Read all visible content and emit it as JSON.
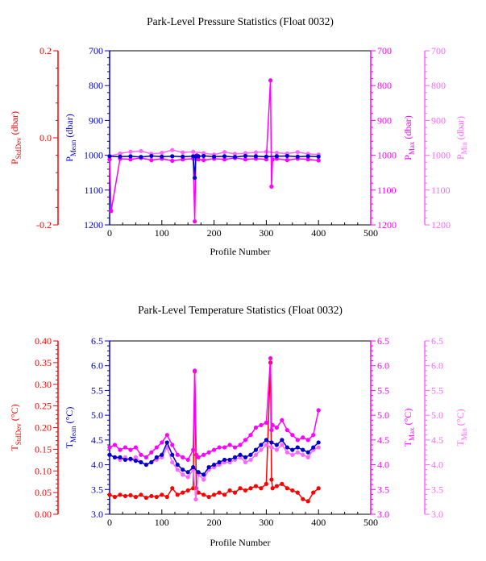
{
  "colors": {
    "stddev": "#ff0000",
    "mean": "#0000cc",
    "max": "#ff00ff",
    "min": "#ff66ff",
    "frame": "#000000"
  },
  "chart_data": [
    {
      "type": "scatter",
      "title": "Park-Level Pressure Statistics (Float 0032)",
      "xlabel": "Profile Number",
      "xlim": [
        0,
        500
      ],
      "xticks": [
        "0",
        "100",
        "200",
        "300",
        "400",
        "500"
      ],
      "grid": false,
      "axes": {
        "stddev": {
          "label_main": "P",
          "label_sub": "StdDev",
          "unit": " (dbar)",
          "range": [
            -0.2,
            0.2
          ],
          "reversed": false,
          "ticks": [
            "-0.2",
            "0.0",
            "0.2"
          ],
          "side": "left-outer",
          "color_key": "stddev"
        },
        "mean": {
          "label_main": "P",
          "label_sub": "Mean",
          "unit": " (dbar)",
          "range": [
            1200,
            700
          ],
          "reversed": true,
          "ticks": [
            "700",
            "800",
            "900",
            "1000",
            "1100",
            "1200"
          ],
          "side": "left",
          "color_key": "mean"
        },
        "max": {
          "label_main": "P",
          "label_sub": "Max",
          "unit": " (dbar)",
          "range": [
            1200,
            700
          ],
          "reversed": true,
          "ticks": [
            "700",
            "800",
            "900",
            "1000",
            "1100",
            "1200"
          ],
          "side": "right",
          "color_key": "max"
        },
        "min": {
          "label_main": "P",
          "label_sub": "Min",
          "unit": " (dbar)",
          "range": [
            1200,
            700
          ],
          "reversed": true,
          "ticks": [
            "700",
            "800",
            "900",
            "1000",
            "1100",
            "1200"
          ],
          "side": "right-outer",
          "color_key": "min"
        }
      },
      "series": [
        {
          "key": "min",
          "axis": "min",
          "x": [
            0,
            20,
            40,
            60,
            80,
            100,
            120,
            140,
            160,
            180,
            200,
            220,
            240,
            260,
            280,
            300,
            320,
            340,
            360,
            380,
            400
          ],
          "y": [
            1002,
            995,
            990,
            988,
            996,
            993,
            985,
            992,
            990,
            994,
            998,
            991,
            996,
            994,
            992,
            990,
            993,
            995,
            991,
            996,
            998
          ]
        },
        {
          "key": "max",
          "axis": "max",
          "x": [
            0,
            3,
            20,
            40,
            60,
            80,
            100,
            120,
            140,
            160,
            163,
            165,
            167,
            170,
            180,
            200,
            220,
            240,
            260,
            280,
            300,
            308,
            310,
            312,
            320,
            340,
            360,
            380,
            400
          ],
          "y": [
            1012,
            1160,
            1010,
            1012,
            1008,
            1014,
            1010,
            1016,
            1012,
            1010,
            1190,
            1010,
            1000,
            1012,
            1014,
            1010,
            1012,
            1008,
            1012,
            1010,
            1012,
            785,
            1090,
            1012,
            1010,
            1014,
            1010,
            1012,
            1015
          ]
        },
        {
          "key": "mean",
          "axis": "mean",
          "x": [
            0,
            20,
            40,
            60,
            80,
            100,
            120,
            140,
            160,
            163,
            165,
            170,
            180,
            200,
            220,
            240,
            260,
            280,
            300,
            320,
            340,
            360,
            380,
            400
          ],
          "y": [
            1003,
            1004,
            1003,
            1005,
            1002,
            1004,
            1003,
            1004,
            1003,
            1065,
            1003,
            1003,
            1002,
            1004,
            1003,
            1005,
            1002,
            1003,
            1004,
            1003,
            1002,
            1004,
            1003,
            1004
          ]
        }
      ]
    },
    {
      "type": "scatter",
      "title": "Park-Level Temperature Statistics (Float 0032)",
      "xlabel": "Profile Number",
      "xlim": [
        0,
        500
      ],
      "xticks": [
        "0",
        "100",
        "200",
        "300",
        "400",
        "500"
      ],
      "grid": false,
      "axes": {
        "stddev": {
          "label_main": "T",
          "label_sub": "StdDev",
          "unit": " (°C)",
          "range": [
            0.0,
            0.4
          ],
          "reversed": false,
          "ticks": [
            "0.00",
            "0.05",
            "0.10",
            "0.15",
            "0.20",
            "0.25",
            "0.30",
            "0.35",
            "0.40"
          ],
          "side": "left-outer",
          "color_key": "stddev"
        },
        "mean": {
          "label_main": "T",
          "label_sub": "Mean",
          "unit": " (°C)",
          "range": [
            3.0,
            6.5
          ],
          "reversed": false,
          "ticks": [
            "3.0",
            "3.5",
            "4.0",
            "4.5",
            "5.0",
            "5.5",
            "6.0",
            "6.5"
          ],
          "side": "left",
          "color_key": "mean"
        },
        "max": {
          "label_main": "T",
          "label_sub": "Max",
          "unit": " (°C)",
          "range": [
            3.0,
            6.5
          ],
          "reversed": false,
          "ticks": [
            "3.0",
            "3.5",
            "4.0",
            "4.5",
            "5.0",
            "5.5",
            "6.0",
            "6.5"
          ],
          "side": "right",
          "color_key": "max"
        },
        "min": {
          "label_main": "T",
          "label_sub": "Min",
          "unit": " (°C)",
          "range": [
            3.0,
            6.5
          ],
          "reversed": false,
          "ticks": [
            "3.0",
            "3.5",
            "4.0",
            "4.5",
            "5.0",
            "5.5",
            "6.0",
            "6.5"
          ],
          "side": "right-outer",
          "color_key": "min"
        }
      },
      "series": [
        {
          "key": "stddev",
          "axis": "stddev",
          "x": [
            0,
            10,
            20,
            30,
            40,
            50,
            60,
            70,
            80,
            90,
            100,
            110,
            120,
            130,
            140,
            150,
            160,
            163,
            166,
            170,
            180,
            190,
            200,
            210,
            220,
            230,
            240,
            250,
            260,
            270,
            280,
            290,
            300,
            308,
            310,
            312,
            320,
            330,
            340,
            350,
            360,
            370,
            380,
            390,
            400
          ],
          "y": [
            0.045,
            0.04,
            0.045,
            0.042,
            0.044,
            0.04,
            0.045,
            0.038,
            0.042,
            0.04,
            0.045,
            0.04,
            0.06,
            0.045,
            0.05,
            0.055,
            0.06,
            0.33,
            0.06,
            0.05,
            0.045,
            0.04,
            0.045,
            0.05,
            0.045,
            0.055,
            0.05,
            0.06,
            0.055,
            0.06,
            0.065,
            0.06,
            0.07,
            0.35,
            0.08,
            0.06,
            0.065,
            0.07,
            0.06,
            0.055,
            0.05,
            0.035,
            0.03,
            0.05,
            0.06
          ]
        },
        {
          "key": "min",
          "axis": "min",
          "x": [
            0,
            10,
            20,
            30,
            40,
            50,
            60,
            70,
            80,
            90,
            100,
            110,
            120,
            130,
            140,
            150,
            160,
            165,
            170,
            180,
            190,
            200,
            210,
            220,
            230,
            240,
            250,
            260,
            270,
            280,
            290,
            300,
            310,
            320,
            330,
            340,
            350,
            360,
            370,
            380,
            390,
            400
          ],
          "y": [
            4.2,
            4.15,
            4.1,
            4.15,
            4.1,
            4.15,
            4.05,
            4.0,
            4.05,
            4.1,
            4.15,
            4.35,
            4.05,
            3.9,
            3.8,
            3.75,
            3.9,
            3.3,
            3.8,
            3.7,
            3.9,
            3.95,
            4.0,
            4.05,
            4.05,
            4.1,
            4.15,
            4.05,
            4.1,
            4.2,
            4.3,
            4.4,
            4.35,
            4.3,
            4.4,
            4.25,
            4.2,
            4.25,
            4.2,
            4.15,
            4.3,
            4.35
          ]
        },
        {
          "key": "max",
          "axis": "max",
          "x": [
            0,
            10,
            20,
            30,
            40,
            50,
            60,
            70,
            80,
            90,
            100,
            110,
            120,
            130,
            140,
            150,
            160,
            163,
            166,
            170,
            180,
            190,
            200,
            210,
            220,
            230,
            240,
            250,
            260,
            270,
            280,
            290,
            300,
            308,
            310,
            312,
            320,
            330,
            340,
            350,
            360,
            370,
            380,
            390,
            400
          ],
          "y": [
            4.35,
            4.4,
            4.3,
            4.35,
            4.3,
            4.35,
            4.2,
            4.15,
            4.25,
            4.35,
            4.45,
            4.6,
            4.4,
            4.2,
            4.15,
            4.1,
            4.3,
            5.9,
            4.2,
            4.15,
            4.2,
            4.25,
            4.3,
            4.35,
            4.35,
            4.4,
            4.35,
            4.4,
            4.5,
            4.6,
            4.75,
            4.8,
            4.85,
            6.15,
            4.7,
            4.8,
            4.75,
            4.9,
            4.7,
            4.6,
            4.5,
            4.55,
            4.5,
            4.6,
            5.1
          ]
        },
        {
          "key": "mean",
          "axis": "mean",
          "x": [
            0,
            10,
            20,
            30,
            40,
            50,
            60,
            70,
            80,
            90,
            100,
            110,
            120,
            130,
            140,
            150,
            160,
            170,
            180,
            190,
            200,
            210,
            220,
            230,
            240,
            250,
            260,
            270,
            280,
            290,
            300,
            310,
            320,
            330,
            340,
            350,
            360,
            370,
            380,
            390,
            400
          ],
          "y": [
            4.2,
            4.15,
            4.15,
            4.1,
            4.12,
            4.08,
            4.05,
            4.0,
            4.05,
            4.15,
            4.2,
            4.45,
            4.2,
            4.0,
            3.9,
            3.85,
            3.95,
            3.85,
            3.8,
            3.95,
            4.0,
            4.05,
            4.1,
            4.1,
            4.15,
            4.2,
            4.15,
            4.2,
            4.3,
            4.4,
            4.5,
            4.45,
            4.4,
            4.5,
            4.35,
            4.3,
            4.35,
            4.3,
            4.25,
            4.35,
            4.45
          ]
        }
      ]
    }
  ]
}
